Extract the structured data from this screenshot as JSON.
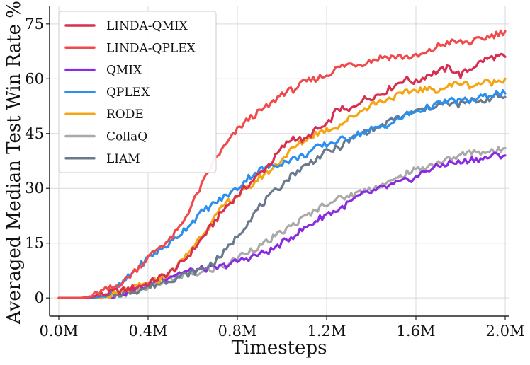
{
  "chart_data": {
    "type": "line",
    "xlabel": "Timesteps",
    "ylabel": "Averaged Median Test Win Rate %",
    "xlim": [
      0,
      2.0
    ],
    "ylim": [
      -5,
      80
    ],
    "x_ticks": [
      {
        "value": 0.0,
        "label": "0.0M"
      },
      {
        "value": 0.4,
        "label": "0.4M"
      },
      {
        "value": 0.8,
        "label": "0.8M"
      },
      {
        "value": 1.2,
        "label": "1.2M"
      },
      {
        "value": 1.6,
        "label": "1.6M"
      },
      {
        "value": 2.0,
        "label": "2.0M"
      }
    ],
    "y_ticks": [
      {
        "value": 0,
        "label": "0"
      },
      {
        "value": 15,
        "label": "15"
      },
      {
        "value": 30,
        "label": "30"
      },
      {
        "value": 45,
        "label": "45"
      },
      {
        "value": 60,
        "label": "60"
      },
      {
        "value": 75,
        "label": "75"
      }
    ],
    "grid": true,
    "legend_position": "top-left",
    "x": [
      0.0,
      0.1,
      0.15,
      0.2,
      0.25,
      0.3,
      0.35,
      0.4,
      0.45,
      0.5,
      0.55,
      0.6,
      0.65,
      0.7,
      0.75,
      0.8,
      0.85,
      0.9,
      0.95,
      1.0,
      1.05,
      1.1,
      1.15,
      1.2,
      1.25,
      1.3,
      1.35,
      1.4,
      1.45,
      1.5,
      1.55,
      1.6,
      1.65,
      1.7,
      1.75,
      1.8,
      1.85,
      1.9,
      1.95,
      2.0
    ],
    "series": [
      {
        "name": "LINDA-QMIX",
        "color": "#d62f4f",
        "values": [
          0,
          0,
          0.3,
          1.0,
          1.8,
          2.2,
          3.0,
          4.0,
          5.5,
          7.0,
          9.5,
          13,
          17,
          21,
          25,
          28,
          31,
          34,
          37,
          41,
          44,
          43,
          46,
          47,
          52,
          51,
          54,
          55,
          56,
          58,
          60,
          59,
          61,
          62,
          63,
          61,
          63,
          65,
          66,
          66
        ]
      },
      {
        "name": "LINDA-QPLEX",
        "color": "#f04a4c",
        "values": [
          0,
          0,
          0.5,
          2,
          3,
          5,
          8,
          11,
          14,
          16,
          20,
          26,
          32,
          38,
          42,
          46,
          49,
          51,
          53,
          56,
          57,
          59,
          60,
          61,
          63,
          64,
          64,
          65,
          66,
          66,
          66,
          66,
          67,
          69,
          70,
          70,
          70,
          71,
          72,
          73
        ]
      },
      {
        "name": "QMIX",
        "color": "#8a2be2",
        "values": [
          0,
          0,
          0,
          0.2,
          0.8,
          1.5,
          2.5,
          3.5,
          5,
          6,
          7,
          7.5,
          8,
          8,
          9,
          10,
          11,
          12,
          13,
          15,
          17,
          19,
          21,
          23,
          24,
          26,
          28,
          29,
          30,
          31,
          32,
          33,
          35,
          36,
          37,
          37,
          38,
          38,
          39,
          39
        ]
      },
      {
        "name": "QPLEX",
        "color": "#2b8ff0",
        "values": [
          0,
          0,
          0,
          0.5,
          2,
          5,
          8,
          11,
          13,
          15,
          18,
          21,
          24,
          26,
          28,
          30,
          33,
          35,
          36,
          37,
          38,
          39,
          41,
          42,
          43,
          44,
          45,
          46,
          47,
          48,
          50,
          51,
          52,
          53,
          54,
          54,
          54,
          55,
          56,
          56
        ]
      },
      {
        "name": "RODE",
        "color": "#f5a512",
        "values": [
          0,
          0,
          0,
          0.2,
          0.8,
          2,
          3,
          4,
          5,
          7,
          10,
          14,
          18,
          22,
          26,
          28,
          30,
          33,
          35,
          38,
          41,
          43,
          45,
          46,
          47,
          49,
          51,
          53,
          54,
          55,
          56,
          57,
          57,
          57,
          58,
          59,
          58,
          59,
          59,
          60
        ]
      },
      {
        "name": "CollaQ",
        "color": "#a9a9a9",
        "values": [
          0,
          0,
          0,
          0.2,
          0.6,
          1.2,
          2,
          3,
          4,
          5,
          6,
          6.5,
          7,
          8,
          9,
          11,
          13,
          14,
          16,
          18,
          20,
          22,
          24,
          26,
          27,
          28,
          29,
          30,
          31,
          32,
          34,
          35,
          36,
          37,
          38,
          39,
          40,
          40,
          40,
          41
        ]
      },
      {
        "name": "LIAM",
        "color": "#6a7a8c",
        "values": [
          0,
          0,
          0,
          0.2,
          0.8,
          1.5,
          2,
          3,
          4,
          5,
          6,
          7,
          8,
          10,
          13,
          17,
          21,
          25,
          28,
          31,
          34,
          36,
          38,
          40,
          41,
          43,
          45,
          46,
          47,
          49,
          50,
          51,
          52,
          53,
          53,
          53,
          54,
          54,
          55,
          55
        ]
      }
    ]
  }
}
